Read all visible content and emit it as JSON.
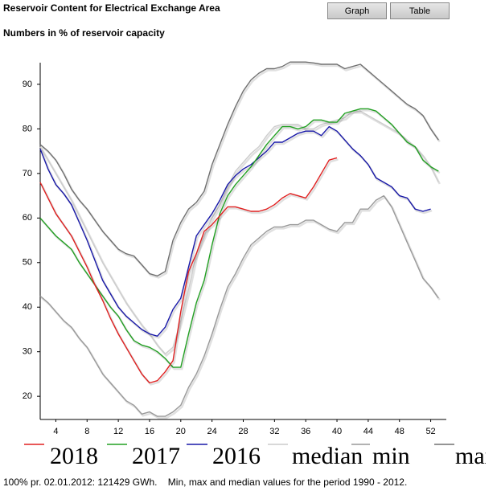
{
  "header": {
    "title": "Reservoir Content for Electrical Exchange Area",
    "subtitle": "Numbers in % of reservoir capacity",
    "buttons": [
      "Graph",
      "Table"
    ]
  },
  "chart_data": {
    "type": "line",
    "x": [
      2,
      3,
      4,
      5,
      6,
      7,
      8,
      9,
      10,
      11,
      12,
      13,
      14,
      15,
      16,
      17,
      18,
      19,
      20,
      21,
      22,
      23,
      24,
      25,
      26,
      27,
      28,
      29,
      30,
      31,
      32,
      33,
      34,
      35,
      36,
      37,
      38,
      39,
      40,
      41,
      42,
      43,
      44,
      45,
      46,
      47,
      48,
      49,
      50,
      51,
      52,
      53
    ],
    "xlim": [
      2,
      54
    ],
    "xticks": [
      4,
      8,
      12,
      16,
      20,
      24,
      28,
      32,
      36,
      40,
      44,
      48,
      52
    ],
    "ylim": [
      14.8,
      98.1
    ],
    "yticks": [
      20,
      30,
      40,
      50,
      60,
      70,
      80,
      90
    ],
    "series": [
      {
        "name": "2018",
        "color": "#e02020",
        "values": [
          68,
          64.5,
          61,
          58.5,
          56,
          52.5,
          49,
          45,
          41.5,
          37.5,
          34,
          31,
          28,
          25,
          23,
          23.5,
          25.5,
          28,
          39,
          48,
          52,
          57,
          58.5,
          60.5,
          62.5,
          62.5,
          62,
          61.5,
          61.5,
          62,
          63,
          64.5,
          65.5,
          65,
          64.5,
          67,
          70,
          73,
          73.5,
          null,
          null,
          null,
          null,
          null,
          null,
          null,
          null,
          null,
          null,
          null,
          null,
          null
        ]
      },
      {
        "name": "2017",
        "color": "#22a022",
        "values": [
          60,
          58,
          56,
          54.5,
          53,
          50,
          47.5,
          45,
          42.5,
          40,
          38,
          35,
          32.5,
          31.5,
          31,
          30,
          28.5,
          26.5,
          26.5,
          34,
          41,
          46,
          54,
          61,
          65,
          67.5,
          69.5,
          71.5,
          74,
          76.5,
          78.5,
          80.5,
          80.5,
          80,
          80.5,
          82,
          82,
          81.5,
          81.5,
          83.5,
          84,
          84.5,
          84.5,
          84,
          82.5,
          81,
          79,
          77,
          76,
          73,
          71.5,
          70.5
        ]
      },
      {
        "name": "2016",
        "color": "#1818a8",
        "values": [
          75.5,
          71,
          67.5,
          65.5,
          63,
          59,
          55,
          50.5,
          46,
          43,
          40,
          38,
          36.5,
          35,
          34,
          33.5,
          35.5,
          39.5,
          42,
          49,
          56,
          58.5,
          61,
          64,
          67.5,
          69.5,
          71,
          72,
          73.5,
          75,
          77,
          77,
          78,
          79,
          79.5,
          79.5,
          78.5,
          80.5,
          79.5,
          77.5,
          75.5,
          74,
          72,
          69,
          68,
          67,
          65,
          64.5,
          62,
          61.5,
          62,
          null
        ]
      },
      {
        "name": "median",
        "color": "#cccccc",
        "values": [
          76,
          73,
          70,
          67,
          64,
          60.5,
          57,
          53.5,
          50,
          47,
          44,
          41,
          38.5,
          36,
          34,
          31.5,
          29.5,
          31,
          37,
          44,
          52,
          56,
          60,
          63,
          67,
          70.5,
          72.5,
          74.5,
          76,
          78.5,
          80.5,
          81,
          81,
          81,
          80,
          80,
          81,
          81.5,
          82,
          82.5,
          84,
          84,
          83,
          82,
          81,
          80,
          79,
          77.5,
          76,
          74,
          71.5,
          68
        ]
      },
      {
        "name": "min",
        "color": "#999999",
        "values": [
          42.5,
          41,
          39,
          37,
          35.5,
          33,
          31,
          28,
          25,
          23,
          21,
          19,
          18,
          16,
          16.5,
          15.5,
          15.5,
          16.5,
          18,
          22,
          25,
          29,
          34,
          39.5,
          44.5,
          47.5,
          51,
          54,
          55.5,
          57,
          58,
          58,
          58.5,
          58.5,
          59.5,
          59.5,
          58.5,
          57.5,
          57,
          59,
          59,
          62,
          62,
          64,
          65,
          62.5,
          58.5,
          54.5,
          50.5,
          46.5,
          44.5,
          42
        ]
      },
      {
        "name": "max",
        "color": "#707070",
        "values": [
          76.5,
          75,
          73,
          70,
          66.5,
          64,
          62,
          59.5,
          57,
          55,
          53,
          52,
          51.5,
          49.5,
          47.5,
          47,
          48,
          55,
          59,
          62,
          63.5,
          66,
          72,
          76.5,
          81,
          85,
          88.5,
          91,
          92.5,
          93.5,
          93.5,
          94,
          95,
          95,
          95,
          94.8,
          94.5,
          94.5,
          94.5,
          93.5,
          94,
          94.5,
          93,
          91.5,
          90,
          88.5,
          87,
          85.5,
          84.5,
          83,
          80,
          77.5
        ]
      }
    ]
  },
  "footer": "100% pr. 02.01.2012: 121429 GWh.    Min, max and median values for the period 1990 - 2012."
}
